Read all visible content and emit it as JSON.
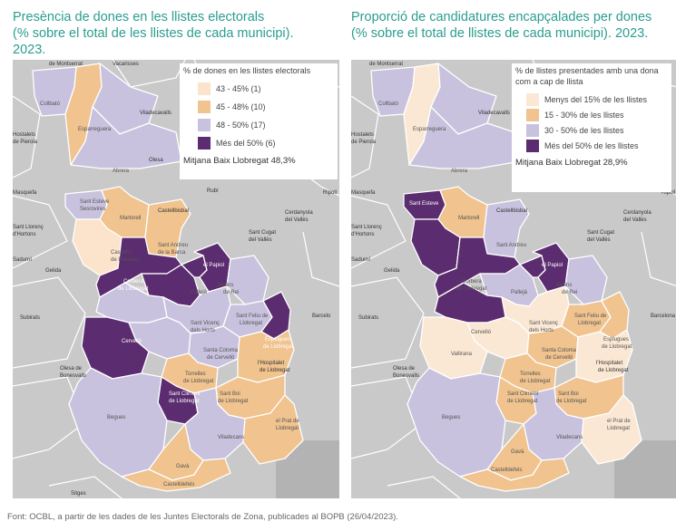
{
  "left_panel": {
    "title_lines": [
      "Presència de dones en les llistes electorals",
      " (% sobre el total de les llistes de cada municipi).",
      "2023."
    ],
    "legend": {
      "title": "% de dones en les llistes electorals",
      "items": [
        {
          "label": "43 - 45% (1)",
          "color": "#fbe3cc"
        },
        {
          "label": "45 - 48% (10)",
          "color": "#f0c38f"
        },
        {
          "label": "48 - 50% (17)",
          "color": "#c8c2de"
        },
        {
          "label": "Més del 50% (6)",
          "color": "#5b2c6f"
        }
      ],
      "average": "Mitjana Baix Llobregat 48,3%"
    },
    "places": [
      "de Montserrat",
      "Vacarisses",
      "Collbató",
      "Esparreguera",
      "Viladecavalls",
      "Hostalets de Pierola",
      "Abrera",
      "Olesa",
      "Masquefa",
      "Rubí",
      "Ripoll",
      "Sant Esteve Sesrovires",
      "Martorell",
      "Castellbisbal",
      "Sant Llorenç d'Hortons",
      "Cerdanyola del Vallès",
      "Sant Cugat del Vallès",
      "Castellví de Rosanes",
      "Sant Andreu de la Barca",
      "el Papiol",
      "Sadurní",
      "Gelida",
      "Corbera de Llobregat",
      "Pallejà",
      "Molins de Rei",
      "Barcelo",
      "Subirats",
      "Sant Vicenç dels Horts",
      "Sant Feliu de Llobregat",
      "Esplugues de Llobregat",
      "Cervelló",
      "Santa Coloma de Cervelló",
      "Torrelles de Llobregat",
      "l'Hospitalet de Llobregat",
      "Olesa de Bonesvalls",
      "Sant Climent de Llobregat",
      "Sant Boi de Llobregat",
      "Begues",
      "Viladecans",
      "el Prat de Llobregat",
      "Gavà",
      "Castelldefels",
      "Sitges"
    ]
  },
  "right_panel": {
    "title_lines": [
      "Proporció de candidatures encapçalades per dones",
      "(% sobre el total de llistes de cada municipi). 2023."
    ],
    "legend": {
      "title_lines": [
        "% de llistes presentades amb una dona",
        "com a cap de llista"
      ],
      "items": [
        {
          "label": "Menys del 15% de les llistes",
          "color": "#fbe8d4"
        },
        {
          "label": "15 - 30% de les llistes",
          "color": "#f0c38f"
        },
        {
          "label": "30 - 50% de les llistes",
          "color": "#c8c2de"
        },
        {
          "label": "Més del 50% de les llistes",
          "color": "#5b2c6f"
        }
      ],
      "average": "Mitjana Baix Llobregat 28,9%"
    }
  },
  "source": "Font: OCBL, a partir de les dades de les Juntes Electorals de Zona, publicades al BOPB (26/04/2023).",
  "colors": {
    "title": "#2a9d8f",
    "background_land": "#c9c9c9",
    "background_outside": "#b3b3b3",
    "borders": "#ffffff"
  }
}
